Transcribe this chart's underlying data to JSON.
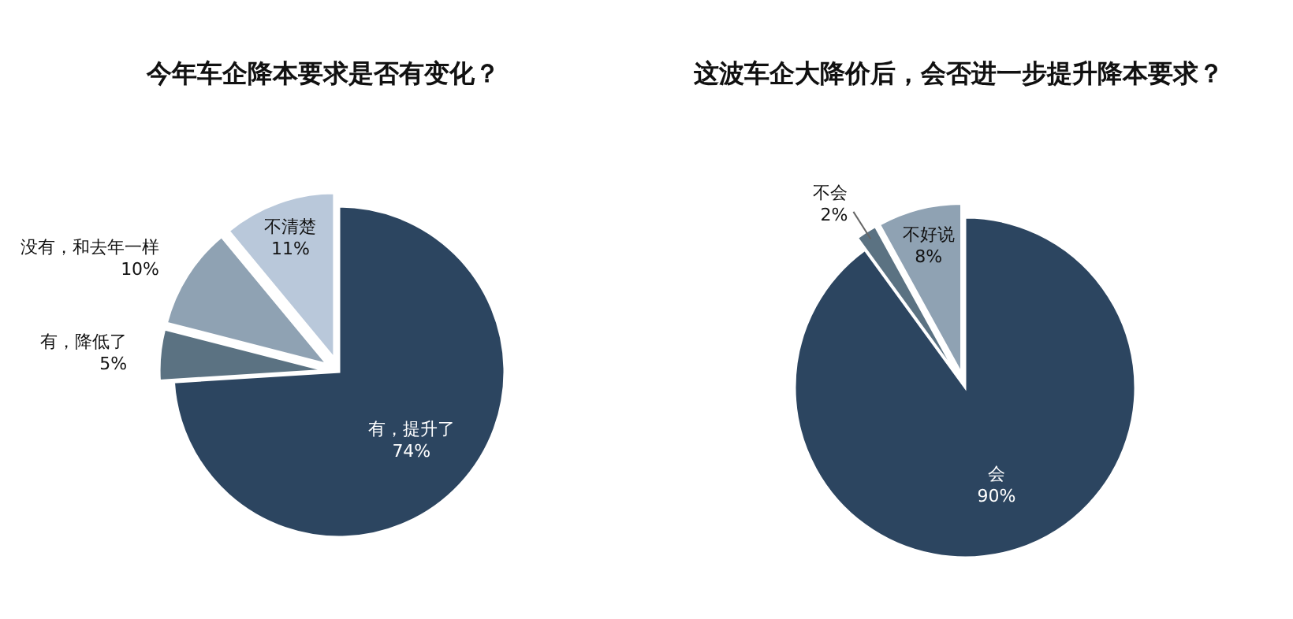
{
  "chart_data": [
    {
      "type": "pie",
      "title": "今年车企降本要求是否有变化？",
      "categories": [
        "有，提升了",
        "有，降低了",
        "没有，和去年一样",
        "不清楚"
      ],
      "values": [
        74,
        5,
        10,
        11
      ],
      "value_labels": [
        "74%",
        "5%",
        "10%",
        "11%"
      ],
      "colors": [
        "#2c4560",
        "#5b7282",
        "#8fa2b3",
        "#b9c8da"
      ]
    },
    {
      "type": "pie",
      "title": "这波车企大降价后，会否进一步提升降本要求？",
      "categories": [
        "会",
        "不会",
        "不好说"
      ],
      "values": [
        90,
        2,
        8
      ],
      "value_labels": [
        "90%",
        "2%",
        "8%"
      ],
      "colors": [
        "#2c4560",
        "#5b7282",
        "#8fa2b3"
      ]
    }
  ]
}
